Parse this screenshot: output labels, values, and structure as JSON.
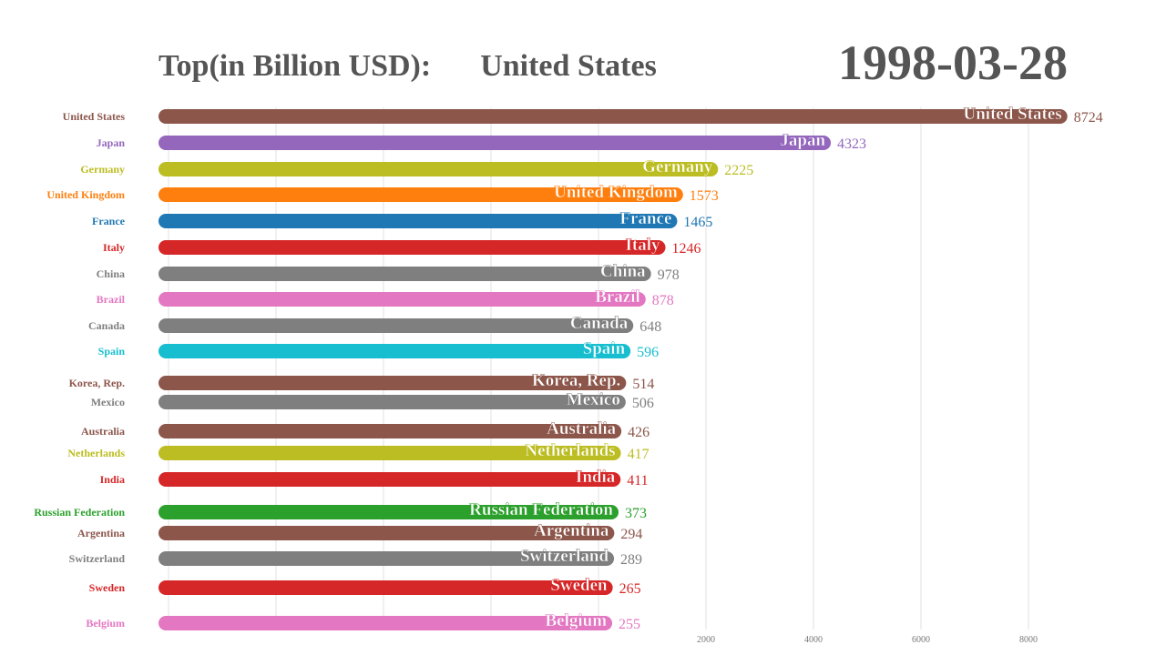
{
  "header": {
    "title_prefix": "Top(in Billion USD):",
    "leader": "United States",
    "date": "1998-03-28"
  },
  "chart_data": {
    "type": "bar",
    "orientation": "horizontal",
    "title": "Top(in Billion USD):",
    "date": "1998-03-28",
    "categories": [
      "United States",
      "Japan",
      "Germany",
      "United Kingdom",
      "France",
      "Italy",
      "China",
      "Brazil",
      "Canada",
      "Spain",
      "Korea, Rep.",
      "Mexico",
      "Australia",
      "Netherlands",
      "India",
      "Russian Federation",
      "Argentina",
      "Switzerland",
      "Sweden",
      "Belgium"
    ],
    "values": [
      8724,
      4323,
      2225,
      1573,
      1465,
      1246,
      978,
      878,
      648,
      596,
      514,
      506,
      426,
      417,
      411,
      373,
      294,
      289,
      265,
      255
    ],
    "colors": [
      "#8c564b",
      "#9467bd",
      "#bcbd22",
      "#ff7f0e",
      "#1f77b4",
      "#d62728",
      "#7f7f7f",
      "#e377c2",
      "#7f7f7f",
      "#17becf",
      "#8c564b",
      "#7f7f7f",
      "#8c564b",
      "#bcbd22",
      "#d62728",
      "#2ca02c",
      "#8c564b",
      "#7f7f7f",
      "#d62728",
      "#e377c2"
    ],
    "x_ticks": [
      2000,
      4000,
      6000,
      8000
    ],
    "xlabel": "",
    "ylabel": "",
    "grid": true
  }
}
